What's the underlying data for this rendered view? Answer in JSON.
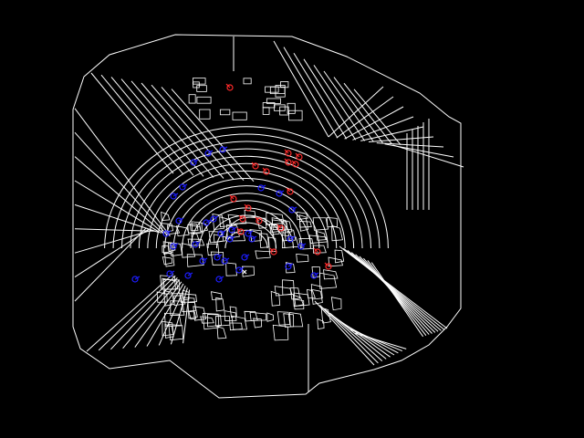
{
  "colors": {
    "background": "#000000",
    "line": "#ffffff",
    "minutiae_blue": "#1d1dff",
    "minutiae_red": "#ff2a2a"
  },
  "figure": {
    "subject": "fingerprint-ridge-skeleton-with-minutiae",
    "minutiae_types": [
      "blue-markers",
      "red-markers"
    ]
  }
}
